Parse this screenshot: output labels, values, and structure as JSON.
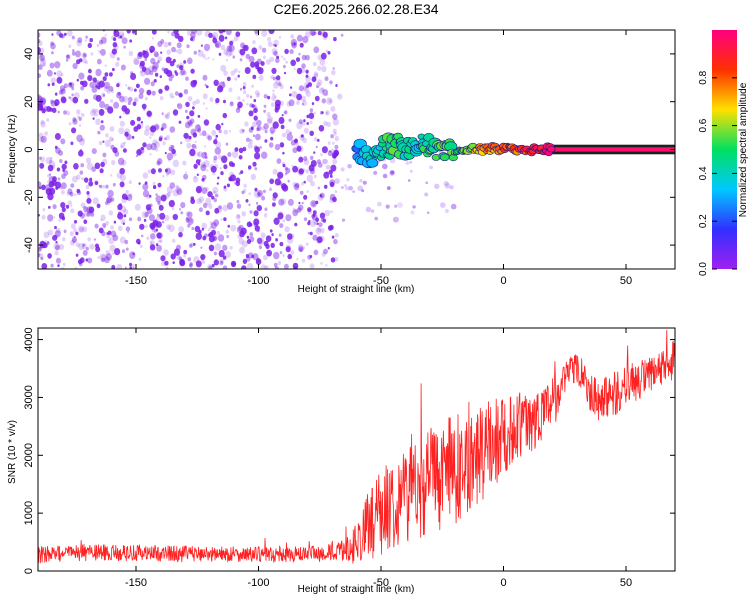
{
  "title": "C2E6.2025.266.02.28.E34",
  "colors": {
    "background": "#ffffff",
    "snr_line": "#ff2020",
    "axis": "#000000",
    "speckle": "#7a1ee6"
  },
  "colorscale": [
    "#a020f0",
    "#3030ff",
    "#00c8ff",
    "#00e060",
    "#ffe000",
    "#ff3000",
    "#ff0080"
  ],
  "chart_data": [
    {
      "type": "heatmap",
      "xlabel": "Height of straight line (km)",
      "ylabel": "Frequency (Hz)",
      "xlim": [
        -190,
        70
      ],
      "ylim": [
        -50,
        50
      ],
      "xticks": [
        -150,
        -100,
        -50,
        0,
        50
      ],
      "yticks": [
        -40,
        -20,
        0,
        20,
        40
      ],
      "xtick_labels": [
        "-150",
        "-100",
        "-50",
        "0",
        "50"
      ],
      "ytick_labels": [
        "-40",
        "-20",
        "0",
        "20",
        "40"
      ],
      "noise_region_x": [
        -190,
        -68
      ],
      "signal": [
        {
          "x": -60,
          "y": -1,
          "v": 0.25
        },
        {
          "x": -55,
          "y": -3,
          "v": 0.35
        },
        {
          "x": -50,
          "y": 0,
          "v": 0.45
        },
        {
          "x": -45,
          "y": 2,
          "v": 0.5
        },
        {
          "x": -40,
          "y": 1,
          "v": 0.45
        },
        {
          "x": -35,
          "y": 3,
          "v": 0.4
        },
        {
          "x": -30,
          "y": 1,
          "v": 0.5
        },
        {
          "x": -25,
          "y": 0,
          "v": 0.55
        },
        {
          "x": -20,
          "y": 0,
          "v": 0.5
        },
        {
          "x": -15,
          "y": 0,
          "v": 0.6
        },
        {
          "x": -10,
          "y": 0,
          "v": 0.7
        },
        {
          "x": -5,
          "y": 0,
          "v": 0.75
        },
        {
          "x": 0,
          "y": 0,
          "v": 0.8
        },
        {
          "x": 5,
          "y": 0,
          "v": 0.8
        },
        {
          "x": 10,
          "y": 0,
          "v": 0.85
        },
        {
          "x": 15,
          "y": 0,
          "v": 0.9
        },
        {
          "x": 20,
          "y": 0,
          "v": 0.95
        },
        {
          "x": 70,
          "y": 0,
          "v": 0.95
        }
      ],
      "colorbar": {
        "label": "Normalized spectral amplitude",
        "range": [
          0.0,
          1.0
        ],
        "ticks": [
          0.0,
          0.2,
          0.4,
          0.6,
          0.8
        ],
        "tick_labels": [
          "0.0",
          "0.2",
          "0.4",
          "0.6",
          "0.8"
        ]
      }
    },
    {
      "type": "line",
      "xlabel": "Height of straight line (km)",
      "ylabel": "SNR (10 * v/v)",
      "xlim": [
        -190,
        70
      ],
      "ylim": [
        0,
        4200
      ],
      "xticks": [
        -150,
        -100,
        -50,
        0,
        50
      ],
      "yticks": [
        0,
        1000,
        2000,
        3000,
        4000
      ],
      "xtick_labels": [
        "-150",
        "-100",
        "-50",
        "0",
        "50"
      ],
      "ytick_labels": [
        "0",
        "1000",
        "2000",
        "3000",
        "4000"
      ],
      "series": [
        {
          "x": [
            -190,
            -170,
            -150,
            -130,
            -110,
            -90,
            -75,
            -65,
            -60,
            -55,
            -50,
            -45,
            -40,
            -35,
            -30,
            -25,
            -20,
            -15,
            -10,
            -5,
            0,
            5,
            10,
            15,
            20,
            25,
            28,
            32,
            36,
            40,
            45,
            50,
            55,
            60,
            65,
            70
          ],
          "y": [
            280,
            320,
            310,
            300,
            290,
            280,
            300,
            350,
            500,
            800,
            1000,
            1200,
            1350,
            1450,
            1550,
            1650,
            1750,
            1850,
            2000,
            2150,
            2350,
            2500,
            2550,
            2700,
            2900,
            3250,
            3550,
            3450,
            3050,
            2950,
            3050,
            3200,
            3300,
            3350,
            3500,
            3650
          ],
          "amplitude": [
            150,
            150,
            140,
            140,
            130,
            140,
            140,
            180,
            350,
            600,
            750,
            800,
            850,
            900,
            950,
            950,
            950,
            900,
            850,
            800,
            700,
            600,
            550,
            500,
            450,
            350,
            300,
            300,
            350,
            400,
            400,
            350,
            350,
            350,
            350,
            350
          ]
        }
      ]
    }
  ]
}
